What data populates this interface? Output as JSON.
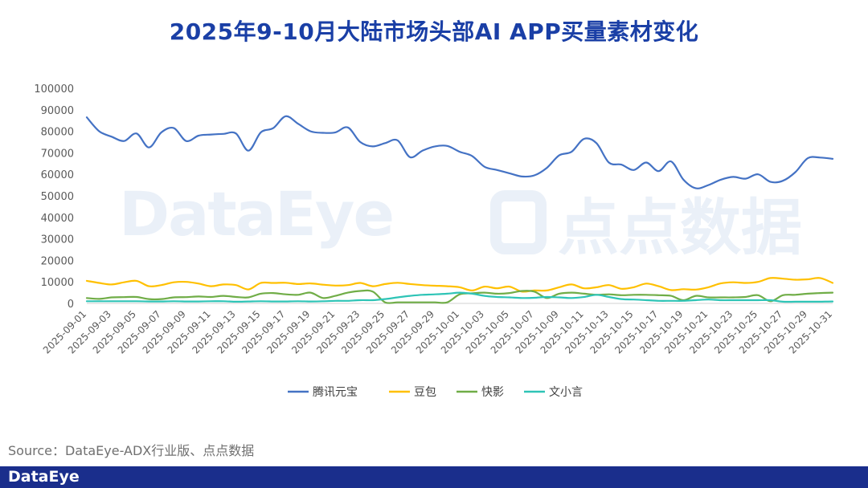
{
  "title": "2025年9-10月大陆市场头部AI APP买量素材变化",
  "watermark": {
    "left_text": "DataEye",
    "right_text": "点点数据"
  },
  "source": "Source：DataEye-ADX行业版、点点数据",
  "footer": {
    "logo": "DataEye",
    "bar_color": "#1a2e8c"
  },
  "chart_data": {
    "type": "line",
    "title": "2025年9-10月大陆市场头部AI APP买量素材变化",
    "ylim": [
      0,
      100000
    ],
    "yticks": [
      0,
      10000,
      20000,
      30000,
      40000,
      50000,
      60000,
      70000,
      80000,
      90000,
      100000
    ],
    "grid": false,
    "legend_position": "bottom",
    "x": [
      "2025-09-01",
      "2025-09-02",
      "2025-09-03",
      "2025-09-04",
      "2025-09-05",
      "2025-09-06",
      "2025-09-07",
      "2025-09-08",
      "2025-09-09",
      "2025-09-10",
      "2025-09-11",
      "2025-09-12",
      "2025-09-13",
      "2025-09-14",
      "2025-09-15",
      "2025-09-16",
      "2025-09-17",
      "2025-09-18",
      "2025-09-19",
      "2025-09-20",
      "2025-09-21",
      "2025-09-22",
      "2025-09-23",
      "2025-09-24",
      "2025-09-25",
      "2025-09-26",
      "2025-09-27",
      "2025-09-28",
      "2025-09-29",
      "2025-09-30",
      "2025-10-01",
      "2025-10-02",
      "2025-10-03",
      "2025-10-04",
      "2025-10-05",
      "2025-10-06",
      "2025-10-07",
      "2025-10-08",
      "2025-10-09",
      "2025-10-10",
      "2025-10-11",
      "2025-10-12",
      "2025-10-13",
      "2025-10-14",
      "2025-10-15",
      "2025-10-16",
      "2025-10-17",
      "2025-10-18",
      "2025-10-19",
      "2025-10-20",
      "2025-10-21",
      "2025-10-22",
      "2025-10-23",
      "2025-10-24",
      "2025-10-25",
      "2025-10-26",
      "2025-10-27",
      "2025-10-28",
      "2025-10-29",
      "2025-10-30",
      "2025-10-31"
    ],
    "xtick_labels": [
      "2025-09-01",
      "2025-09-03",
      "2025-09-05",
      "2025-09-07",
      "2025-09-09",
      "2025-09-11",
      "2025-09-13",
      "2025-09-15",
      "2025-09-17",
      "2025-09-19",
      "2025-09-21",
      "2025-09-23",
      "2025-09-25",
      "2025-09-27",
      "2025-09-29",
      "2025-10-01",
      "2025-10-03",
      "2025-10-05",
      "2025-10-07",
      "2025-10-09",
      "2025-10-11",
      "2025-10-13",
      "2025-10-15",
      "2025-10-17",
      "2025-10-19",
      "2025-10-21",
      "2025-10-23",
      "2025-10-25",
      "2025-10-27",
      "2025-10-29",
      "2025-10-31"
    ],
    "series": [
      {
        "name": "腾讯元宝",
        "color": "#4472c4",
        "values": [
          86500,
          80000,
          77500,
          75500,
          79000,
          72500,
          79500,
          81500,
          75500,
          78000,
          78500,
          78800,
          79000,
          71000,
          79500,
          81500,
          87000,
          83500,
          80000,
          79300,
          79500,
          81800,
          75000,
          73000,
          74500,
          75800,
          68000,
          71000,
          73000,
          73200,
          70500,
          68500,
          63500,
          62000,
          60500,
          59000,
          59500,
          63000,
          68800,
          70500,
          76500,
          74500,
          65500,
          64500,
          62000,
          65500,
          61500,
          66000,
          57500,
          53500,
          55000,
          57500,
          58800,
          58000,
          60000,
          56500,
          57000,
          61000,
          67500,
          67800,
          67200
        ]
      },
      {
        "name": "豆包",
        "color": "#ffc000",
        "values": [
          10500,
          9500,
          8800,
          9800,
          10500,
          8000,
          8500,
          9800,
          10000,
          9200,
          8000,
          8800,
          8500,
          6500,
          9500,
          9500,
          9600,
          9000,
          9300,
          8700,
          8300,
          8500,
          9500,
          8000,
          9000,
          9600,
          9000,
          8500,
          8200,
          8000,
          7500,
          6000,
          7800,
          7000,
          7800,
          5500,
          6000,
          6000,
          7500,
          8800,
          7000,
          7500,
          8500,
          6800,
          7500,
          9200,
          8000,
          6200,
          6600,
          6400,
          7500,
          9300,
          9800,
          9500,
          10000,
          11800,
          11500,
          11000,
          11200,
          11800,
          9500
        ]
      },
      {
        "name": "快影",
        "color": "#70ad47",
        "values": [
          2500,
          2100,
          2800,
          2900,
          3000,
          2000,
          2000,
          2800,
          2900,
          3200,
          3000,
          3500,
          3000,
          2800,
          4500,
          4800,
          4200,
          4000,
          5000,
          2500,
          3500,
          5000,
          5800,
          5500,
          500,
          500,
          500,
          500,
          500,
          500,
          4200,
          4700,
          5000,
          4500,
          4800,
          5800,
          5500,
          2500,
          4500,
          5000,
          4500,
          4000,
          4200,
          3800,
          4000,
          4000,
          3800,
          3500,
          1500,
          3500,
          2800,
          2800,
          2800,
          3000,
          3800,
          1000,
          3800,
          4000,
          4500,
          4800,
          5000
        ]
      },
      {
        "name": "文小言",
        "color": "#2ec4b6",
        "values": [
          1000,
          1000,
          1000,
          1000,
          1000,
          900,
          900,
          1000,
          900,
          900,
          1000,
          1000,
          800,
          900,
          1000,
          900,
          900,
          1000,
          900,
          1000,
          1200,
          1200,
          1500,
          1500,
          2000,
          2800,
          3500,
          4000,
          4200,
          4500,
          5000,
          4500,
          3500,
          3000,
          2800,
          2500,
          2600,
          3000,
          2800,
          2500,
          3000,
          4000,
          3000,
          2000,
          1800,
          1500,
          1200,
          1200,
          1200,
          1500,
          1800,
          1500,
          1500,
          1500,
          1500,
          1500,
          800,
          800,
          800,
          800,
          900
        ]
      }
    ]
  }
}
